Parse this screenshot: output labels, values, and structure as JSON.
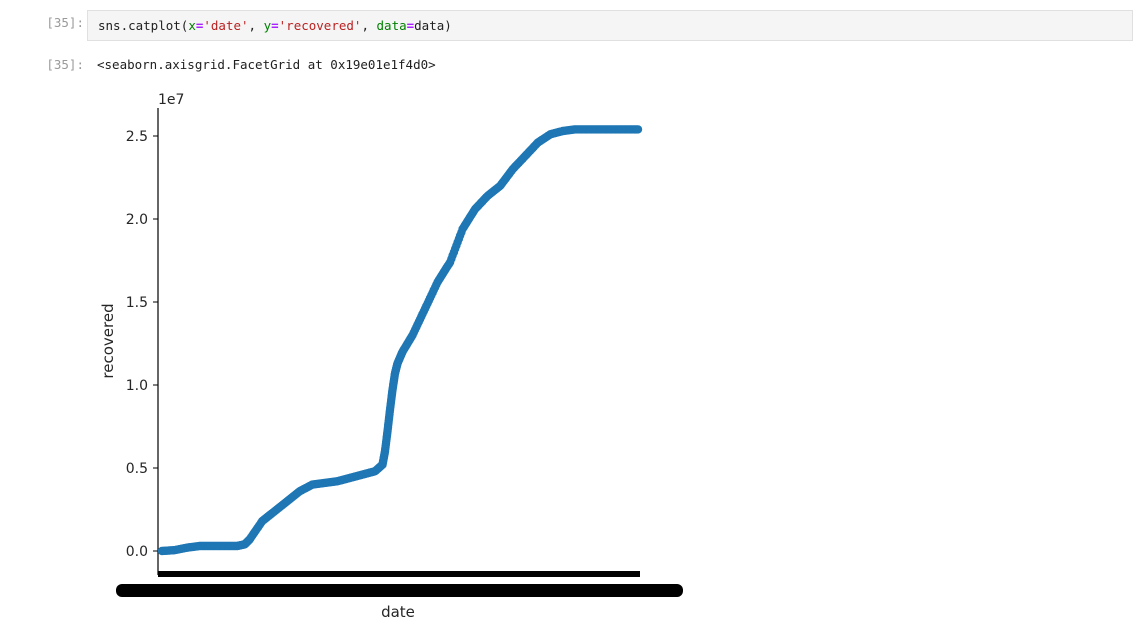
{
  "cell": {
    "input_prompt": "[35]:",
    "output_prompt": "[35]:",
    "code": {
      "call": "sns.catplot(",
      "x_kw": "x",
      "eq": "=",
      "x_val": "'date'",
      "sep": ", ",
      "y_kw": "y",
      "y_val": "'recovered'",
      "data_kw": "data",
      "data_val": "data",
      "close": ")"
    },
    "output_text": "<seaborn.axisgrid.FacetGrid at 0x19e01e1f4d0>"
  },
  "chart_data": {
    "type": "scatter",
    "xlabel": "date",
    "ylabel": "recovered",
    "y_offset_label": "1e7",
    "yticks": [
      0.0,
      0.5,
      1.0,
      1.5,
      2.0,
      2.5
    ],
    "ytick_labels": [
      "0.0",
      "0.5",
      "1.0",
      "1.5",
      "2.0",
      "2.5"
    ],
    "ylim": [
      -0.15,
      2.68
    ],
    "series_color": "#1f77b4",
    "x": [
      0,
      5,
      10,
      15,
      20,
      25,
      30,
      33,
      35,
      40,
      45,
      50,
      55,
      60,
      65,
      70,
      75,
      80,
      85,
      88,
      89,
      90,
      91,
      92,
      93,
      94,
      96,
      100,
      105,
      110,
      115,
      120,
      125,
      130,
      135,
      140,
      145,
      150,
      155,
      160,
      165,
      170,
      175,
      180,
      185,
      190
    ],
    "y": [
      0.0,
      0.005,
      0.02,
      0.03,
      0.03,
      0.03,
      0.03,
      0.04,
      0.07,
      0.18,
      0.24,
      0.3,
      0.36,
      0.4,
      0.41,
      0.42,
      0.44,
      0.46,
      0.48,
      0.52,
      0.6,
      0.72,
      0.85,
      0.97,
      1.07,
      1.13,
      1.2,
      1.3,
      1.46,
      1.62,
      1.74,
      1.94,
      2.06,
      2.14,
      2.2,
      2.3,
      2.38,
      2.46,
      2.51,
      2.53,
      2.54,
      2.54,
      2.54,
      2.54,
      2.54,
      2.54
    ],
    "x_tick_label_note": "overlapping date tick labels rendered as a solid black band"
  }
}
